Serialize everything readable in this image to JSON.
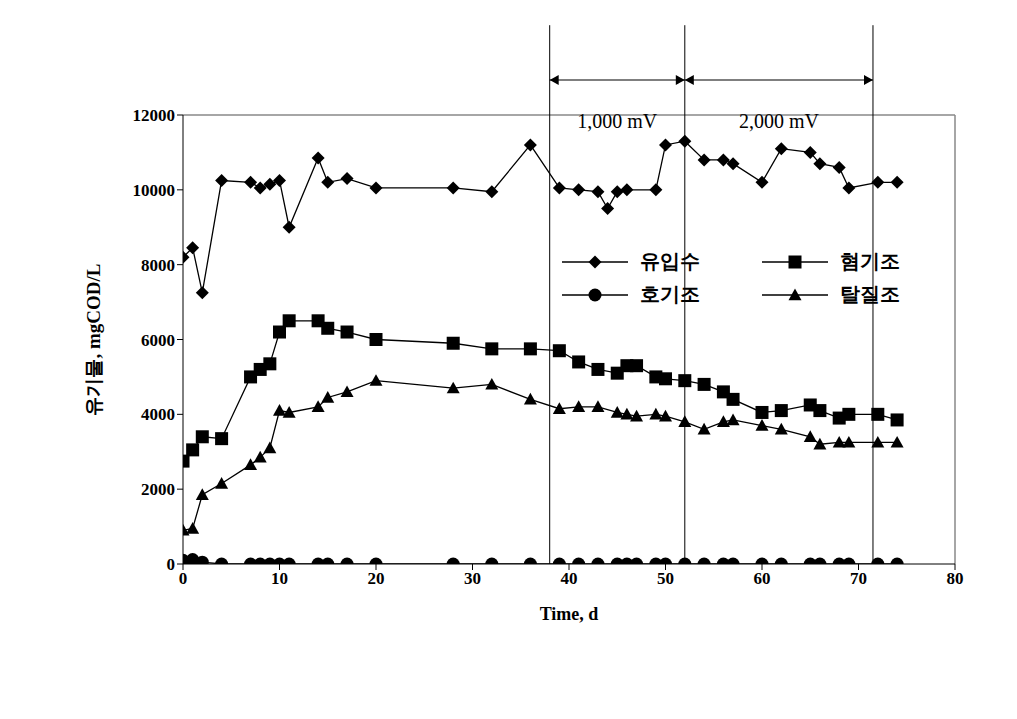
{
  "chart_data": {
    "type": "line",
    "x_label": "Time, d",
    "y_label": "유기물, mgCOD/L",
    "xlim": [
      0,
      80
    ],
    "xticks": [
      0,
      10,
      20,
      30,
      40,
      50,
      60,
      70,
      80
    ],
    "ylim": [
      0,
      12000
    ],
    "yticks": [
      0,
      2000,
      4000,
      6000,
      8000,
      10000,
      12000
    ],
    "grid": false,
    "legend": "right",
    "annotations": [
      {
        "text": "1,000 mV",
        "x": [
          38,
          52
        ]
      },
      {
        "text": "2,000 mV",
        "x": [
          52,
          71.5
        ]
      }
    ],
    "series": [
      {
        "name": "유입수",
        "color": "#000000",
        "marker": "diamond",
        "x": [
          0,
          1,
          2,
          4,
          7,
          8,
          9,
          10,
          11,
          14,
          15,
          17,
          20,
          28,
          32,
          36,
          39,
          41,
          43,
          44,
          45,
          46,
          49,
          50,
          52,
          54,
          56,
          57,
          60,
          62,
          65,
          66,
          68,
          69,
          72,
          74
        ],
        "values": [
          8200,
          8450,
          7250,
          10250,
          10200,
          10050,
          10150,
          10250,
          9000,
          10850,
          10200,
          10300,
          10050,
          10050,
          9950,
          11200,
          10050,
          10000,
          9950,
          9500,
          9950,
          10000,
          10000,
          11200,
          11300,
          10800,
          10800,
          10700,
          10200,
          11100,
          11000,
          10700,
          10600,
          10050,
          10200,
          10200
        ]
      },
      {
        "name": "혐기조",
        "color": "#000000",
        "marker": "square",
        "x": [
          0,
          1,
          2,
          4,
          7,
          8,
          9,
          10,
          11,
          14,
          15,
          17,
          20,
          28,
          32,
          36,
          39,
          41,
          43,
          45,
          46,
          47,
          49,
          50,
          52,
          54,
          56,
          57,
          60,
          62,
          65,
          66,
          68,
          69,
          72,
          74
        ],
        "values": [
          2750,
          3050,
          3400,
          3350,
          5000,
          5200,
          5350,
          6200,
          6500,
          6500,
          6300,
          6200,
          6000,
          5900,
          5750,
          5750,
          5700,
          5400,
          5200,
          5100,
          5300,
          5300,
          5000,
          4950,
          4900,
          4800,
          4600,
          4400,
          4050,
          4100,
          4250,
          4100,
          3900,
          4000,
          4000,
          3850
        ]
      },
      {
        "name": "호기조",
        "color": "#000000",
        "marker": "circle",
        "x": [
          0,
          1,
          2,
          4,
          7,
          8,
          9,
          10,
          11,
          14,
          15,
          17,
          20,
          28,
          32,
          36,
          39,
          41,
          43,
          45,
          46,
          47,
          49,
          50,
          52,
          54,
          56,
          57,
          60,
          62,
          65,
          66,
          68,
          69,
          72,
          74
        ],
        "values": [
          100,
          120,
          50,
          0,
          0,
          0,
          0,
          0,
          0,
          0,
          0,
          0,
          0,
          0,
          0,
          0,
          0,
          0,
          0,
          0,
          0,
          0,
          0,
          0,
          0,
          0,
          0,
          0,
          0,
          0,
          0,
          0,
          0,
          0,
          0,
          0
        ]
      },
      {
        "name": "탈질조",
        "color": "#000000",
        "marker": "triangle",
        "x": [
          0,
          1,
          2,
          4,
          7,
          8,
          9,
          10,
          11,
          14,
          15,
          17,
          20,
          28,
          32,
          36,
          39,
          41,
          43,
          45,
          46,
          47,
          49,
          50,
          52,
          54,
          56,
          57,
          60,
          62,
          65,
          66,
          68,
          69,
          72,
          74
        ],
        "values": [
          900,
          950,
          1850,
          2150,
          2650,
          2850,
          3100,
          4100,
          4050,
          4200,
          4450,
          4600,
          4900,
          4700,
          4800,
          4400,
          4150,
          4200,
          4200,
          4050,
          4000,
          3950,
          4000,
          3950,
          3800,
          3600,
          3800,
          3850,
          3700,
          3600,
          3400,
          3200,
          3250,
          3250,
          3250,
          3250
        ]
      }
    ]
  }
}
